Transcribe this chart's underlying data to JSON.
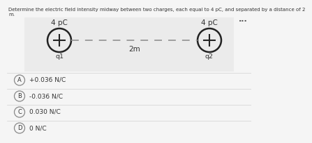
{
  "title_line1": "Determine the electric field intensity midway between two charges, each equal to 4 pC, and separated by a distance of 2",
  "title_line2": "m.",
  "charge_label": "4 pC",
  "charge1_label": "q1",
  "charge2_label": "q2",
  "distance_label": "2m",
  "options": [
    {
      "letter": "A",
      "text": "+0.036 N/C"
    },
    {
      "letter": "B",
      "text": "-0.036 N/C"
    },
    {
      "letter": "C",
      "text": "0.030 N/C"
    },
    {
      "letter": "D",
      "text": "0 N/C"
    }
  ],
  "bg_color": "#f5f5f5",
  "diagram_bg": "#ebebeb",
  "circle_color": "#222222",
  "dashed_color": "#999999",
  "text_color": "#333333",
  "option_bg": "#f5f5f5",
  "option_border": "#d0d0d0",
  "dots_color": "#555555",
  "title_fontsize": 5.0,
  "label_fontsize": 7.5,
  "sublabel_fontsize": 6.8,
  "option_fontsize": 6.5,
  "letter_fontsize": 6.0,
  "dots_fontsize": 8.0
}
